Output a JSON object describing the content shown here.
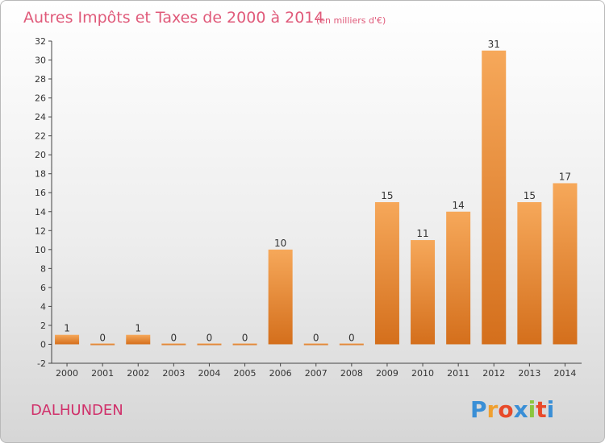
{
  "title": "Autres Impôts et Taxes de 2000 à 2014",
  "subtitle": "(en milliers d'€)",
  "commune": "DALHUNDEN",
  "logo": "Proxiti",
  "colors": {
    "bar_top": "#f6a85a",
    "bar_bottom": "#d46f1c",
    "title": "#e05a7a",
    "commune": "#d0306a"
  },
  "chart_data": {
    "type": "bar",
    "title": "Autres Impôts et Taxes de 2000 à 2014",
    "subtitle": "(en milliers d'€)",
    "categories": [
      "2000",
      "2001",
      "2002",
      "2003",
      "2004",
      "2005",
      "2006",
      "2007",
      "2008",
      "2009",
      "2010",
      "2011",
      "2012",
      "2013",
      "2014"
    ],
    "values": [
      1,
      0,
      1,
      0,
      0,
      0,
      10,
      0,
      0,
      15,
      11,
      14,
      31,
      15,
      17
    ],
    "data_labels": [
      "1",
      "0",
      "1",
      "0",
      "0",
      "0",
      "10",
      "0",
      "0",
      "15",
      "11",
      "14",
      "31",
      "15",
      "17"
    ],
    "ylim": [
      -2,
      32
    ],
    "yticks": [
      -2,
      0,
      2,
      4,
      6,
      8,
      10,
      12,
      14,
      16,
      18,
      20,
      22,
      24,
      26,
      28,
      30,
      32
    ],
    "grid": false,
    "legend": "none"
  }
}
